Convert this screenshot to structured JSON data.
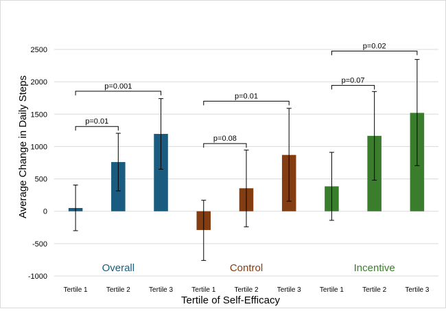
{
  "chart_data": {
    "type": "bar",
    "title": "",
    "xlabel": "Tertile of Self-Efficacy",
    "ylabel": "Average Change in Daily Steps",
    "ylim": [
      -1000,
      2500
    ],
    "yticks": [
      -1000,
      -500,
      0,
      500,
      1000,
      1500,
      2000,
      2500
    ],
    "grid": "horizontal",
    "groups": [
      {
        "name": "Overall",
        "color": "#1a5c7f",
        "categories": [
          "Tertile 1",
          "Tertile 2",
          "Tertile 3"
        ],
        "values": [
          50,
          760,
          1195
        ],
        "err_low": [
          -300,
          315,
          650
        ],
        "err_high": [
          405,
          1205,
          1740
        ],
        "comparisons": [
          {
            "from": 0,
            "to": 1,
            "label": "p=0.01",
            "level": 1310
          },
          {
            "from": 0,
            "to": 2,
            "label": "p=0.001",
            "level": 1855
          }
        ]
      },
      {
        "name": "Control",
        "color": "#843c11",
        "categories": [
          "Tertile 1",
          "Tertile 2",
          "Tertile 3"
        ],
        "values": [
          -290,
          355,
          870
        ],
        "err_low": [
          -760,
          -240,
          155
        ],
        "err_high": [
          170,
          945,
          1590
        ],
        "comparisons": [
          {
            "from": 0,
            "to": 1,
            "label": "p=0.08",
            "level": 1045
          },
          {
            "from": 0,
            "to": 2,
            "label": "p=0.01",
            "level": 1700
          }
        ]
      },
      {
        "name": "Incentive",
        "color": "#3a7d2c",
        "categories": [
          "Tertile 1",
          "Tertile 2",
          "Tertile 3"
        ],
        "values": [
          385,
          1165,
          1520
        ],
        "err_low": [
          -140,
          480,
          705
        ],
        "err_high": [
          910,
          1850,
          2345
        ],
        "comparisons": [
          {
            "from": 0,
            "to": 1,
            "label": "p=0.07",
            "level": 1945
          },
          {
            "from": 0,
            "to": 2,
            "label": "p=0.02",
            "level": 2475
          }
        ]
      }
    ]
  }
}
